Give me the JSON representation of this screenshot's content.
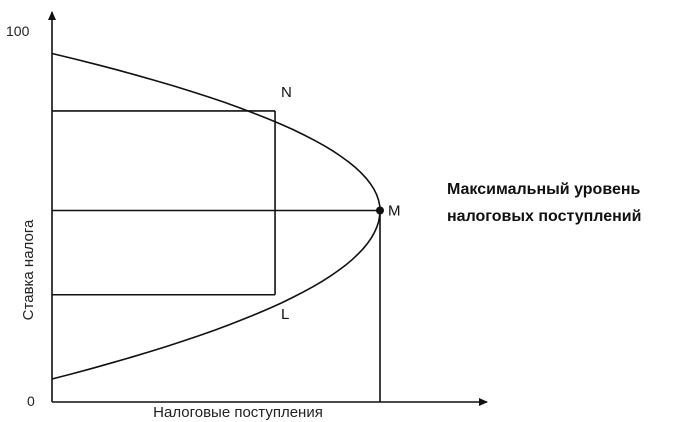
{
  "chart_data": {
    "type": "line",
    "title": "",
    "xlabel": "Налоговые поступления",
    "ylabel": "Ставка налога",
    "y_ticks": [
      "100",
      "0"
    ],
    "ylim": [
      0,
      100
    ],
    "xlim": [
      0,
      100
    ],
    "grid": false,
    "series": [
      {
        "x": [
          0,
          20,
          40,
          60,
          80,
          90,
          100,
          90,
          80,
          60,
          40,
          20,
          0
        ],
        "y": [
          91,
          88,
          83,
          75,
          67,
          61,
          50,
          39,
          33,
          25,
          17,
          11,
          6
        ]
      }
    ],
    "points": {
      "N": {
        "label": "N",
        "x": 68,
        "y": 76
      },
      "M": {
        "label": "M",
        "x": 100,
        "y": 50
      },
      "L": {
        "label": "L",
        "x": 68,
        "y": 28
      }
    },
    "annotation": {
      "line1": "Максимальный уровень",
      "line2": "налоговых поступлений"
    }
  }
}
